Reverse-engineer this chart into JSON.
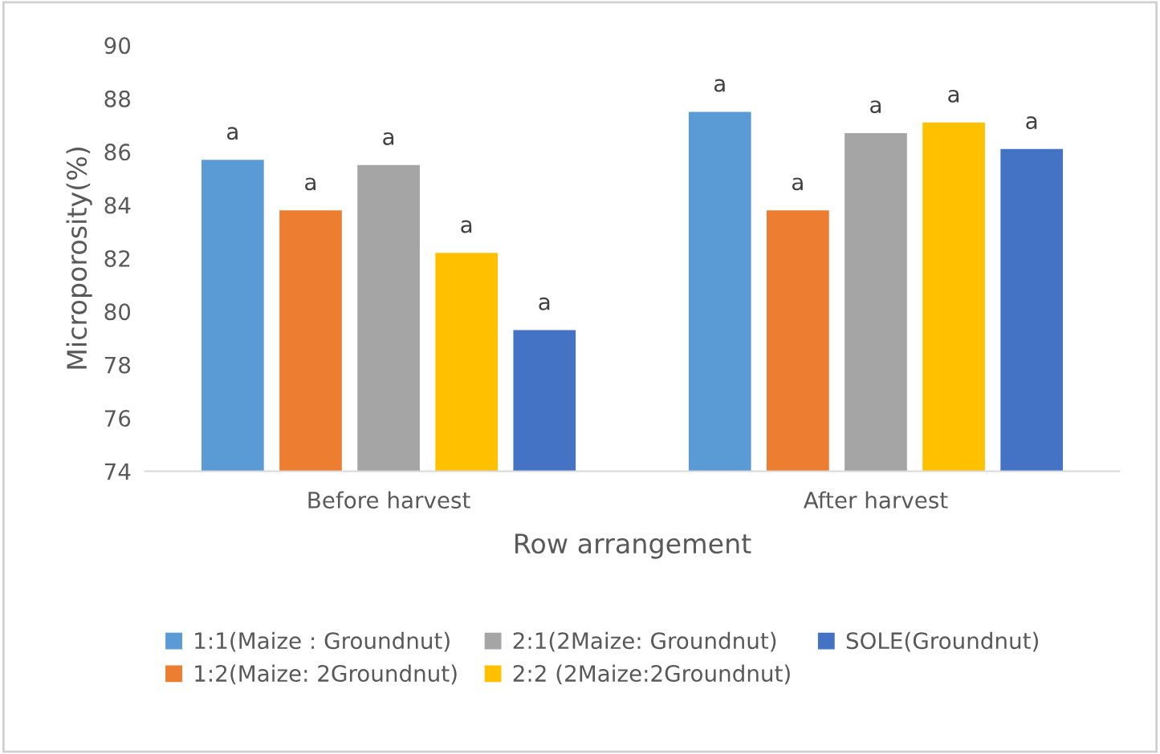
{
  "chart_data": {
    "type": "bar",
    "xlabel": "Row arrangement",
    "ylabel": "Microporosity(%)",
    "categories": [
      "Before harvest",
      "After harvest"
    ],
    "series": [
      {
        "name": "1:1(Maize : Groundnut)",
        "color": "#5b9bd5",
        "values": [
          85.7,
          87.5
        ],
        "value_labels": [
          "a",
          "a"
        ]
      },
      {
        "name": "1:2(Maize: 2Groundnut)",
        "color": "#ed7d31",
        "values": [
          83.8,
          83.8
        ],
        "value_labels": [
          "a",
          "a"
        ]
      },
      {
        "name": "2:1(2Maize: Groundnut)",
        "color": "#a5a5a5",
        "values": [
          85.5,
          86.7
        ],
        "value_labels": [
          "a",
          "a"
        ]
      },
      {
        "name": "2:2 (2Maize:2Groundnut)",
        "color": "#ffc000",
        "values": [
          82.2,
          87.1
        ],
        "value_labels": [
          "a",
          "a"
        ]
      },
      {
        "name": "SOLE(Groundnut)",
        "color": "#4472c4",
        "values": [
          79.3,
          86.1
        ],
        "value_labels": [
          "a",
          "a"
        ]
      }
    ],
    "ylim": [
      74,
      90
    ],
    "yticks": [
      74,
      76,
      78,
      80,
      82,
      84,
      86,
      88,
      90
    ],
    "grid": false,
    "legend": "bottom"
  }
}
